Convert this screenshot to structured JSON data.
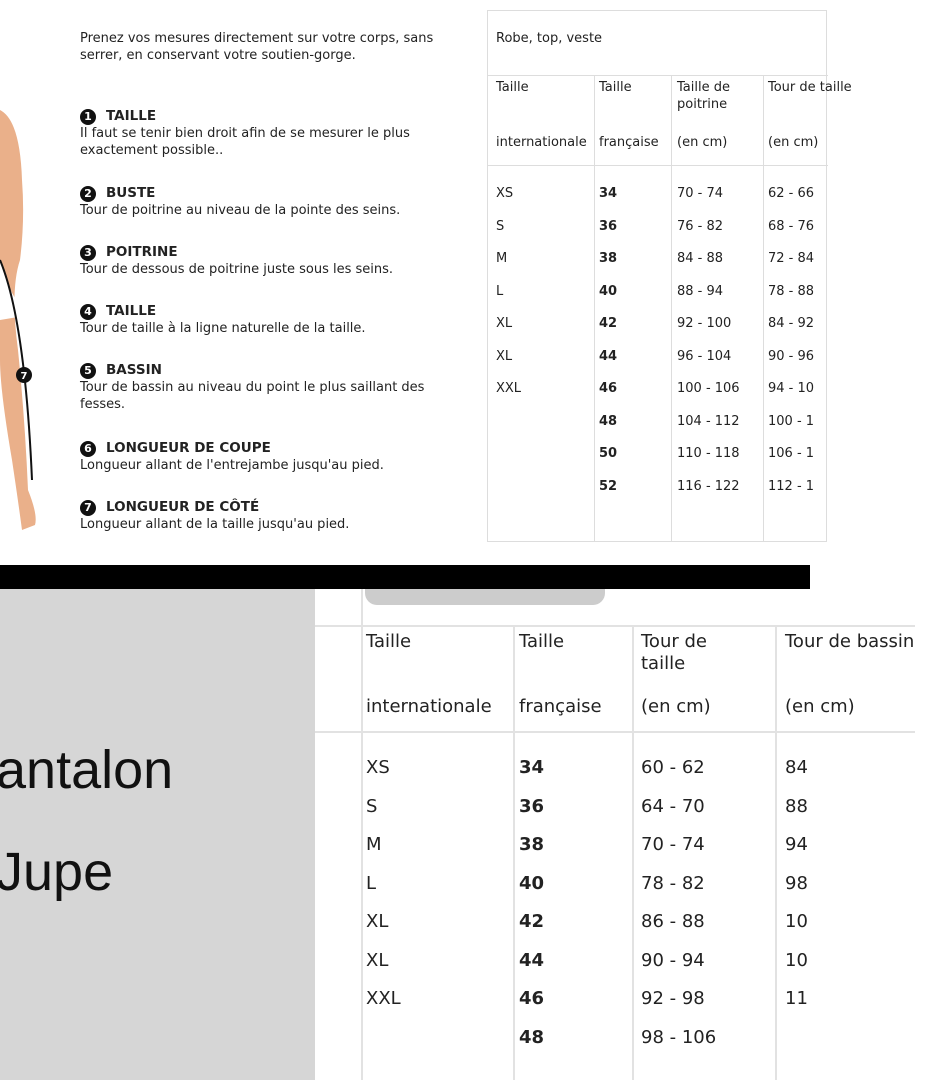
{
  "instructions": {
    "intro": "Prenez vos mesures directement sur votre corps, sans serrer, en conservant votre soutien-gorge.",
    "steps": [
      {
        "n": "1",
        "title": "TAILLE",
        "text": "Il faut se tenir bien droit afin de se mesurer le plus exactement possible.."
      },
      {
        "n": "2",
        "title": "BUSTE",
        "text": "Tour de poitrine au niveau de la pointe des seins."
      },
      {
        "n": "3",
        "title": "POITRINE",
        "text": "Tour de dessous de poitrine juste sous les seins."
      },
      {
        "n": "4",
        "title": "TAILLE",
        "text": "Tour de taille à la ligne naturelle de la taille."
      },
      {
        "n": "5",
        "title": "BASSIN",
        "text": "Tour de bassin au niveau du point le plus saillant des fesses."
      },
      {
        "n": "6",
        "title": "LONGUEUR DE COUPE",
        "text": "Longueur allant de l'entrejambe jusqu'au pied."
      },
      {
        "n": "7",
        "title": "LONGUEUR DE CÔTÉ",
        "text": "Longueur allant de la taille jusqu'au pied."
      }
    ],
    "figure_marker": "7"
  },
  "top_table": {
    "title": "Robe, top, veste",
    "headers": [
      [
        "Taille",
        "internationale"
      ],
      [
        "Taille",
        "française"
      ],
      [
        "Taille de poitrine",
        "(en cm)"
      ],
      [
        "Tour de taille",
        "(en cm)"
      ]
    ],
    "rows": [
      [
        "XS",
        "34",
        "70 - 74",
        "62 - 66"
      ],
      [
        "S",
        "36",
        "76 - 82",
        "68 - 76"
      ],
      [
        "M",
        "38",
        "84 - 88",
        "72 - 84"
      ],
      [
        "L",
        "40",
        "88 - 94",
        "78 - 88"
      ],
      [
        "XL",
        "42",
        "92 - 100",
        "84 - 92"
      ],
      [
        "XL",
        "44",
        "96 - 104",
        "90 - 96"
      ],
      [
        "XXL",
        "46",
        "100 - 106",
        "94 - 10"
      ],
      [
        "",
        "48",
        "104 - 112",
        "100 - 1"
      ],
      [
        "",
        "50",
        "110 - 118",
        "106 - 1"
      ],
      [
        "",
        "52",
        "116 - 122",
        "112 - 1"
      ]
    ]
  },
  "bottom": {
    "labels": [
      "antalon",
      "Jupe"
    ],
    "headers": [
      [
        "Taille",
        "internationale"
      ],
      [
        "Taille",
        "française"
      ],
      [
        "Tour de taille",
        "(en cm)"
      ],
      [
        "Tour de bassin",
        "(en cm)"
      ]
    ],
    "rows": [
      [
        "XS",
        "34",
        "60 - 62",
        "84"
      ],
      [
        "S",
        "36",
        "64 - 70",
        "88"
      ],
      [
        "M",
        "38",
        "70 - 74",
        "94"
      ],
      [
        "L",
        "40",
        "78 - 82",
        "98"
      ],
      [
        "XL",
        "42",
        "86 - 88",
        "10"
      ],
      [
        "XL",
        "44",
        "90 - 94",
        "10"
      ],
      [
        "XXL",
        "46",
        "92 - 98",
        "11"
      ],
      [
        "",
        "48",
        "98 - 106",
        ""
      ]
    ]
  }
}
